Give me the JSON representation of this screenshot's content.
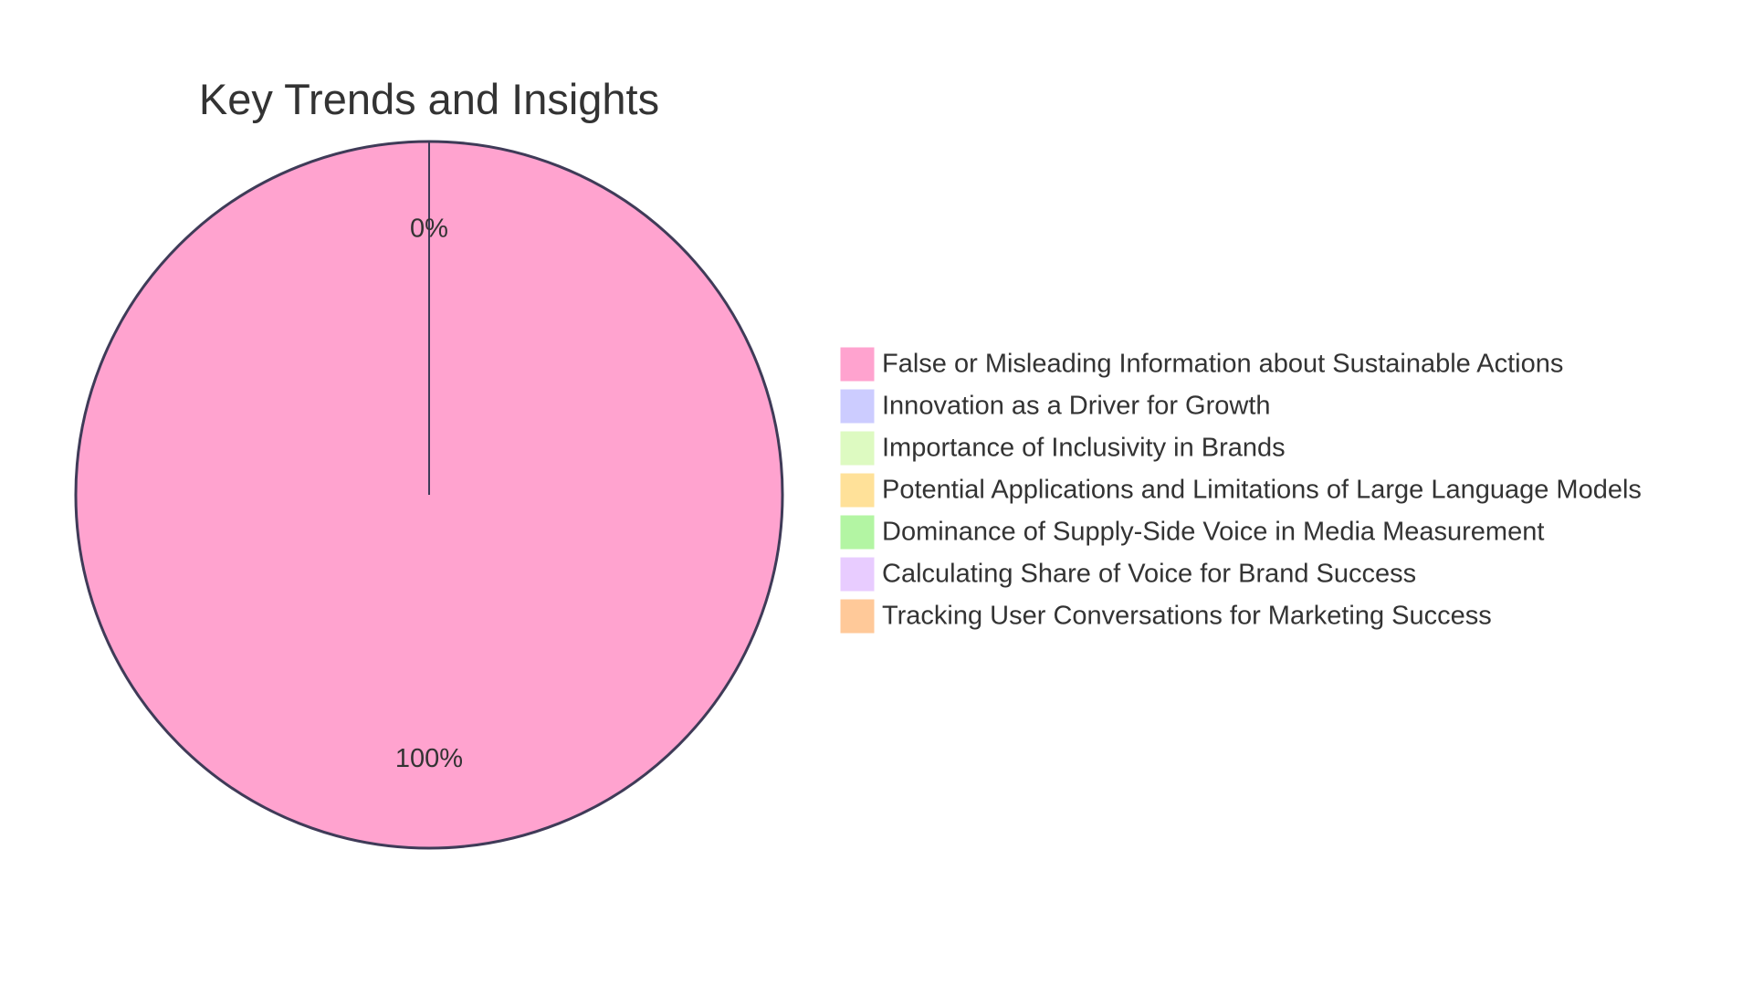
{
  "chart_data": {
    "type": "pie",
    "title": "Key Trends and Insights",
    "slices": [
      {
        "label": "False or Misleading Information about Sustainable Actions",
        "value": 100,
        "percent_label": "100%",
        "color": "#FFA3CF"
      },
      {
        "label": "Innovation as a Driver for Growth",
        "value": 0,
        "percent_label": "0%",
        "color": "#CCCCFF"
      },
      {
        "label": "Importance of Inclusivity in Brands",
        "value": 0,
        "percent_label": "",
        "color": "#DDFAC1"
      },
      {
        "label": "Potential Applications and Limitations of Large Language Models",
        "value": 0,
        "percent_label": "",
        "color": "#FFE199"
      },
      {
        "label": "Dominance of Supply-Side Voice in Media Measurement",
        "value": 0,
        "percent_label": "",
        "color": "#B3F5A3"
      },
      {
        "label": "Calculating Share of Voice for Brand Success",
        "value": 0,
        "percent_label": "",
        "color": "#E8CCFF"
      },
      {
        "label": "Tracking User Conversations for Marketing Success",
        "value": 0,
        "percent_label": "",
        "color": "#FFC999"
      }
    ],
    "stroke_color": "#3F3B58",
    "legend_position": "right"
  }
}
